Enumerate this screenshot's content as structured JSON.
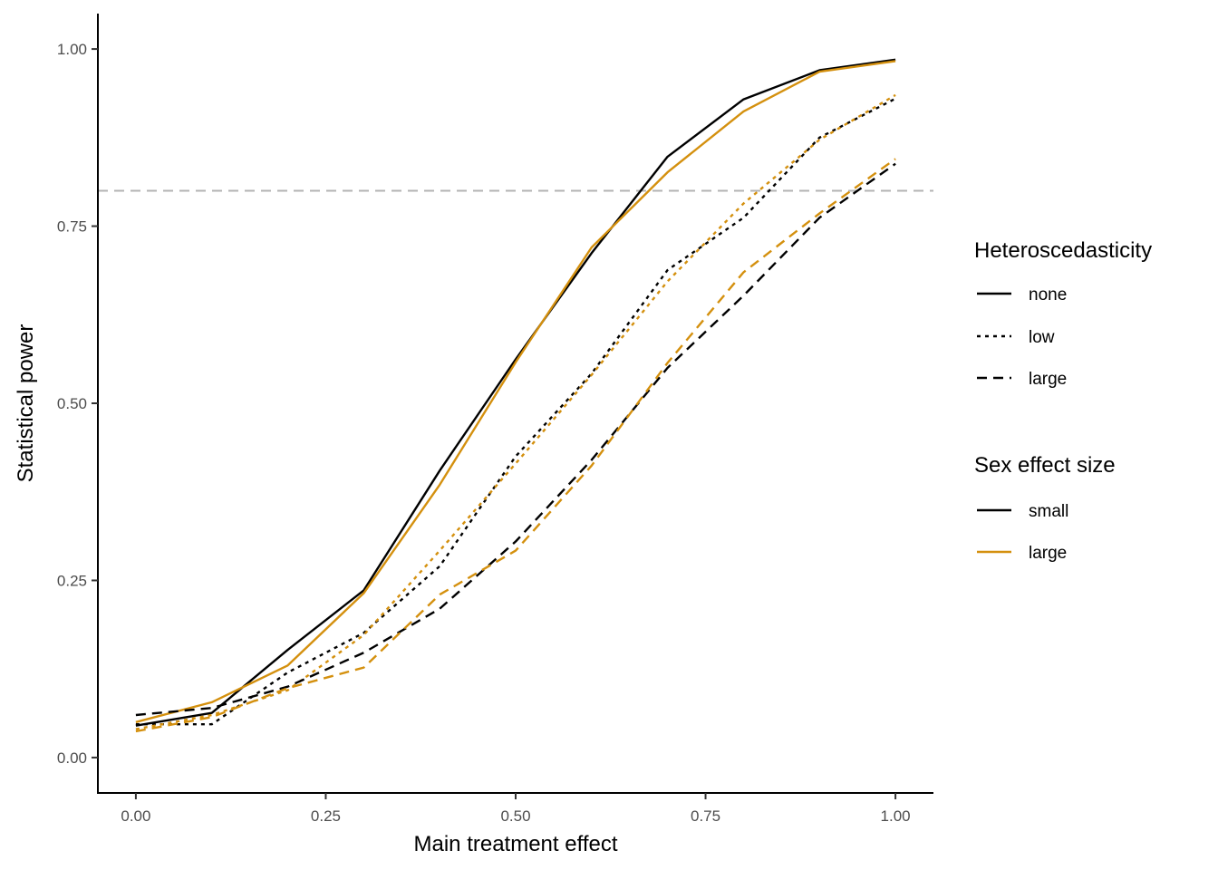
{
  "chart_data": {
    "type": "line",
    "xlabel": "Main treatment effect",
    "ylabel": "Statistical power",
    "xlim": [
      -0.05,
      1.05
    ],
    "ylim": [
      -0.05,
      1.05
    ],
    "x_ticks": [
      "0.00",
      "0.25",
      "0.50",
      "0.75",
      "1.00"
    ],
    "y_ticks": [
      "0.00",
      "0.25",
      "0.50",
      "0.75",
      "1.00"
    ],
    "grid": false,
    "reference_line": {
      "y": 0.8,
      "style": "dashed",
      "color": "#b3b3b3"
    },
    "x": [
      0.0,
      0.1,
      0.2,
      0.3,
      0.4,
      0.5,
      0.6,
      0.7,
      0.8,
      0.9,
      1.0
    ],
    "series": [
      {
        "heteroscedasticity": "none",
        "sex_effect_size": "small",
        "color": "#000000",
        "linetype": "solid",
        "values": [
          0.045,
          0.063,
          0.152,
          0.236,
          0.405,
          0.562,
          0.712,
          0.848,
          0.929,
          0.97,
          0.985
        ]
      },
      {
        "heteroscedasticity": "none",
        "sex_effect_size": "large",
        "color": "#d4900e",
        "linetype": "solid",
        "values": [
          0.05,
          0.078,
          0.13,
          0.232,
          0.385,
          0.558,
          0.72,
          0.826,
          0.912,
          0.968,
          0.983
        ]
      },
      {
        "heteroscedasticity": "low",
        "sex_effect_size": "small",
        "color": "#000000",
        "linetype": "dotted",
        "values": [
          0.047,
          0.047,
          0.12,
          0.176,
          0.27,
          0.425,
          0.542,
          0.688,
          0.762,
          0.875,
          0.93
        ]
      },
      {
        "heteroscedasticity": "low",
        "sex_effect_size": "large",
        "color": "#d4900e",
        "linetype": "dotted",
        "values": [
          0.04,
          0.06,
          0.095,
          0.173,
          0.292,
          0.415,
          0.54,
          0.672,
          0.782,
          0.872,
          0.935
        ]
      },
      {
        "heteroscedasticity": "large",
        "sex_effect_size": "small",
        "color": "#000000",
        "linetype": "dashed",
        "values": [
          0.06,
          0.07,
          0.1,
          0.148,
          0.21,
          0.305,
          0.42,
          0.55,
          0.652,
          0.762,
          0.838
        ]
      },
      {
        "heteroscedasticity": "large",
        "sex_effect_size": "large",
        "color": "#d4900e",
        "linetype": "dashed",
        "values": [
          0.037,
          0.057,
          0.098,
          0.127,
          0.23,
          0.292,
          0.412,
          0.557,
          0.685,
          0.768,
          0.845
        ]
      }
    ],
    "legend": {
      "placement": "right",
      "groups": [
        {
          "title": "Heteroscedasticity",
          "items": [
            {
              "label": "none",
              "linetype": "solid",
              "color": "#000000"
            },
            {
              "label": "low",
              "linetype": "dotted",
              "color": "#000000"
            },
            {
              "label": "large",
              "linetype": "dashed",
              "color": "#000000"
            }
          ]
        },
        {
          "title": "Sex effect size",
          "items": [
            {
              "label": "small",
              "linetype": "solid",
              "color": "#000000"
            },
            {
              "label": "large",
              "linetype": "solid",
              "color": "#d4900e"
            }
          ]
        }
      ]
    }
  }
}
